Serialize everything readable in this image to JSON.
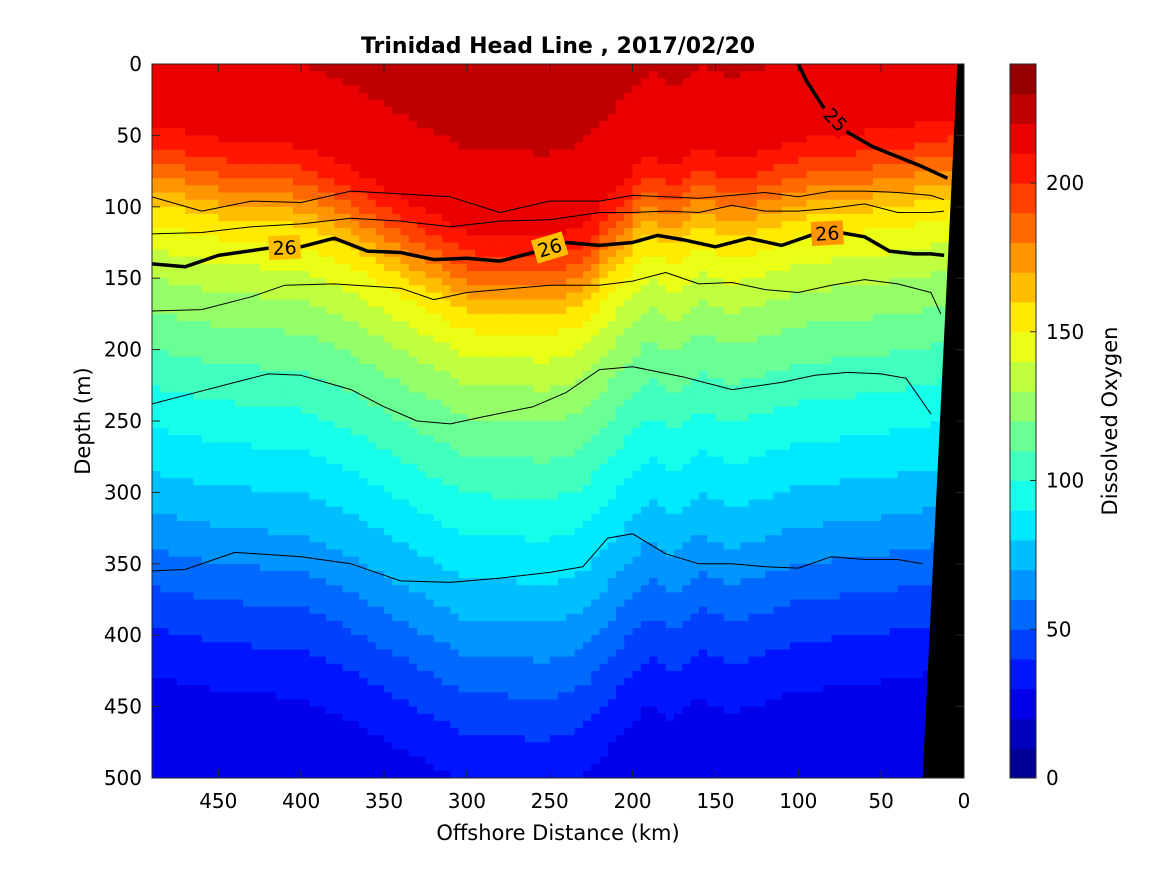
{
  "chart_data": {
    "type": "contour",
    "title": "Trinidad Head Line , 2017/02/20",
    "xlabel": "Offshore Distance (km)",
    "ylabel": "Depth (m)",
    "xlim": [
      490,
      0
    ],
    "ylim": [
      0,
      500
    ],
    "x_reversed": true,
    "y_reversed": true,
    "xticks": [
      450,
      400,
      350,
      300,
      250,
      200,
      150,
      100,
      50,
      0
    ],
    "yticks": [
      0,
      50,
      100,
      150,
      200,
      250,
      300,
      350,
      400,
      450,
      500
    ],
    "colorbar": {
      "label": "Dissolved Oxygen",
      "range": [
        0,
        240
      ],
      "step": 10,
      "ticks": [
        0,
        50,
        100,
        150,
        200
      ],
      "colormap": "jet"
    },
    "field_profile": {
      "depth_m": [
        0,
        50,
        80,
        100,
        120,
        140,
        160,
        200,
        240,
        280,
        320,
        360,
        400,
        450,
        500
      ],
      "oxygen": [
        222,
        218,
        212,
        198,
        178,
        158,
        145,
        125,
        110,
        95,
        82,
        68,
        52,
        35,
        22
      ]
    },
    "depth_offset_m": {
      "x_km": [
        490,
        450,
        400,
        370,
        340,
        300,
        250,
        230,
        210,
        190,
        175,
        160,
        140,
        120,
        100,
        60,
        30,
        10
      ],
      "offset": [
        -40,
        -30,
        -25,
        -10,
        10,
        35,
        38,
        30,
        5,
        -20,
        -10,
        -25,
        -15,
        -22,
        -30,
        -35,
        -40,
        -45
      ]
    },
    "density_contours": [
      {
        "label": "25",
        "bold": true,
        "x": [
          100,
          95,
          85,
          70,
          55,
          40,
          25,
          10
        ],
        "y": [
          0,
          12,
          30,
          48,
          58,
          65,
          72,
          80
        ]
      },
      {
        "label": "26",
        "bold": true,
        "x": [
          490,
          470,
          450,
          420,
          400,
          380,
          360,
          340,
          320,
          300,
          280,
          260,
          240,
          220,
          200,
          185,
          170,
          150,
          130,
          110,
          90,
          75,
          60,
          45,
          30,
          20,
          12
        ],
        "y": [
          140,
          142,
          134,
          129,
          128,
          122,
          131,
          132,
          137,
          136,
          138,
          132,
          125,
          127,
          125,
          120,
          123,
          128,
          122,
          127,
          119,
          118,
          121,
          131,
          133,
          133,
          134
        ]
      },
      {
        "label": "",
        "bold": false,
        "x": [
          490,
          460,
          430,
          400,
          370,
          340,
          310,
          280,
          250,
          220,
          200,
          180,
          160,
          140,
          120,
          100,
          80,
          60,
          40,
          20,
          12
        ],
        "y": [
          93,
          103,
          96,
          97,
          89,
          91,
          93,
          104,
          96,
          96,
          92,
          93,
          94,
          92,
          90,
          93,
          89,
          89,
          90,
          92,
          95
        ]
      },
      {
        "label": "",
        "bold": false,
        "x": [
          490,
          460,
          430,
          400,
          370,
          340,
          310,
          280,
          250,
          220,
          200,
          180,
          160,
          140,
          120,
          100,
          80,
          60,
          40,
          20,
          12
        ],
        "y": [
          119,
          118,
          114,
          112,
          108,
          110,
          114,
          110,
          109,
          104,
          104,
          103,
          104,
          99,
          103,
          103,
          101,
          98,
          104,
          104,
          103
        ]
      },
      {
        "label": "",
        "bold": false,
        "x": [
          490,
          460,
          430,
          410,
          380,
          340,
          320,
          300,
          280,
          250,
          220,
          200,
          180,
          160,
          140,
          120,
          100,
          80,
          60,
          40,
          20,
          14
        ],
        "y": [
          173,
          172,
          163,
          155,
          154,
          157,
          165,
          160,
          158,
          155,
          155,
          152,
          146,
          154,
          153,
          158,
          160,
          155,
          151,
          154,
          160,
          175
        ]
      },
      {
        "label": "",
        "bold": false,
        "x": [
          490,
          470,
          440,
          420,
          400,
          370,
          350,
          330,
          310,
          290,
          260,
          240,
          220,
          200,
          170,
          140,
          110,
          90,
          70,
          50,
          35,
          20
        ],
        "y": [
          238,
          232,
          223,
          217,
          218,
          228,
          240,
          250,
          252,
          247,
          240,
          230,
          214,
          212,
          219,
          228,
          223,
          218,
          216,
          217,
          220,
          245
        ]
      },
      {
        "label": "",
        "bold": false,
        "x": [
          490,
          470,
          440,
          400,
          370,
          340,
          310,
          280,
          250,
          230,
          215,
          200,
          180,
          160,
          140,
          120,
          100,
          80,
          60,
          40,
          25
        ],
        "y": [
          355,
          354,
          342,
          345,
          350,
          362,
          363,
          360,
          356,
          352,
          332,
          329,
          343,
          350,
          350,
          352,
          353,
          345,
          347,
          347,
          350
        ]
      }
    ],
    "bathymetry": {
      "x": [
        0,
        4,
        25,
        25
      ],
      "y": [
        0,
        0,
        500,
        500
      ]
    }
  }
}
